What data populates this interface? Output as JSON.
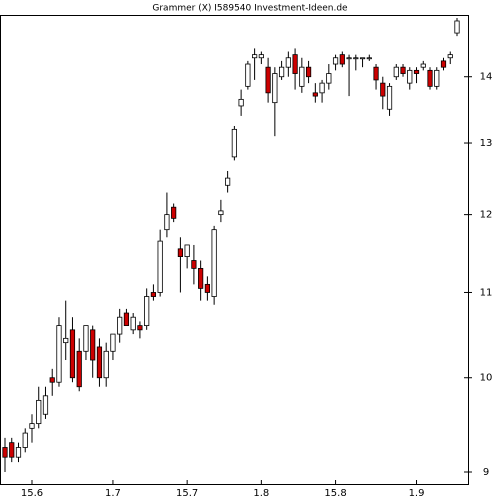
{
  "chart_data": {
    "type": "candlestick",
    "title": "Grammer (X) I589540  Investment-Ideen.de",
    "categories": [
      null,
      null,
      null,
      null,
      "15.6",
      null,
      null,
      null,
      null,
      null,
      null,
      null,
      null,
      null,
      null,
      null,
      "1.7",
      null,
      null,
      null,
      null,
      null,
      null,
      null,
      null,
      null,
      null,
      "15.7",
      null,
      null,
      null,
      null,
      null,
      null,
      null,
      null,
      null,
      null,
      "1.8",
      null,
      null,
      null,
      null,
      null,
      null,
      null,
      null,
      null,
      null,
      "15.8",
      null,
      null,
      null,
      null,
      null,
      null,
      null,
      null,
      null,
      null,
      null,
      "1.9",
      null,
      null,
      null,
      null,
      null,
      null
    ],
    "open": [
      9.25,
      9.3,
      9.15,
      9.25,
      9.45,
      9.5,
      9.6,
      10.0,
      9.95,
      10.4,
      10.55,
      10.3,
      10.3,
      10.55,
      10.35,
      10.0,
      10.3,
      10.5,
      10.75,
      10.55,
      10.6,
      10.6,
      11.0,
      11.0,
      11.8,
      12.1,
      11.55,
      11.45,
      11.4,
      11.3,
      11.1,
      10.95,
      12.0,
      12.4,
      12.8,
      13.55,
      13.85,
      14.3,
      14.3,
      14.15,
      13.6,
      14.0,
      14.15,
      14.35,
      13.85,
      14.15,
      13.75,
      13.75,
      13.9,
      14.2,
      14.35,
      14.3,
      14.3,
      14.3,
      14.3,
      14.15,
      13.9,
      13.5,
      14.0,
      14.15,
      13.9,
      14.1,
      14.15,
      14.1,
      13.85,
      14.25,
      14.3,
      14.7
    ],
    "high": [
      9.35,
      9.35,
      9.3,
      9.45,
      9.6,
      9.9,
      9.9,
      10.1,
      10.7,
      10.9,
      10.7,
      10.45,
      10.6,
      10.6,
      10.45,
      10.4,
      10.5,
      10.8,
      10.8,
      10.75,
      10.65,
      11.05,
      11.1,
      11.8,
      12.3,
      12.15,
      11.7,
      11.6,
      11.6,
      11.4,
      11.2,
      11.85,
      12.2,
      12.6,
      13.25,
      13.8,
      14.25,
      14.45,
      14.4,
      14.3,
      14.15,
      14.25,
      14.4,
      14.45,
      14.3,
      14.25,
      13.9,
      13.95,
      14.2,
      14.35,
      14.4,
      14.35,
      14.35,
      14.3,
      14.35,
      14.2,
      14.0,
      13.9,
      14.2,
      14.2,
      14.15,
      14.15,
      14.25,
      14.15,
      14.15,
      14.3,
      14.4,
      14.95
    ],
    "low": [
      9.0,
      9.1,
      9.1,
      9.2,
      9.3,
      9.45,
      9.55,
      9.8,
      9.9,
      10.2,
      9.95,
      9.85,
      10.2,
      10.0,
      9.9,
      9.9,
      10.2,
      10.4,
      10.6,
      10.5,
      10.45,
      10.55,
      10.9,
      10.95,
      11.7,
      11.9,
      11.0,
      11.3,
      11.1,
      10.9,
      10.9,
      10.85,
      11.9,
      12.3,
      12.75,
      13.4,
      13.8,
      13.95,
      14.2,
      13.6,
      13.1,
      13.95,
      14.0,
      13.8,
      13.75,
      13.9,
      13.6,
      13.6,
      13.8,
      14.1,
      14.15,
      13.7,
      14.1,
      14.15,
      14.25,
      13.8,
      13.5,
      13.4,
      13.95,
      14.0,
      13.8,
      13.9,
      14.1,
      13.8,
      13.8,
      14.1,
      14.2,
      14.65
    ],
    "close": [
      9.15,
      9.15,
      9.25,
      9.4,
      9.5,
      9.75,
      9.8,
      9.95,
      10.6,
      10.45,
      10.0,
      9.9,
      10.6,
      10.2,
      10.0,
      10.3,
      10.5,
      10.7,
      10.6,
      10.7,
      10.55,
      10.95,
      10.95,
      11.65,
      12.0,
      11.95,
      11.45,
      11.6,
      11.3,
      11.05,
      11.0,
      11.8,
      12.05,
      12.5,
      13.2,
      13.65,
      14.2,
      14.35,
      14.35,
      13.75,
      14.05,
      14.15,
      14.3,
      14.05,
      14.15,
      14.0,
      13.7,
      13.9,
      14.05,
      14.3,
      14.2,
      14.3,
      14.3,
      14.3,
      14.3,
      13.95,
      13.7,
      13.85,
      14.15,
      14.05,
      14.1,
      14.05,
      14.2,
      13.85,
      14.1,
      14.15,
      14.35,
      14.9
    ],
    "up_color": "#ffffff",
    "down_color": "#cc0000",
    "log_scale": true,
    "ylim": [
      8.88,
      15.0
    ],
    "yticks": [
      9,
      10,
      11,
      12,
      13,
      14
    ]
  }
}
